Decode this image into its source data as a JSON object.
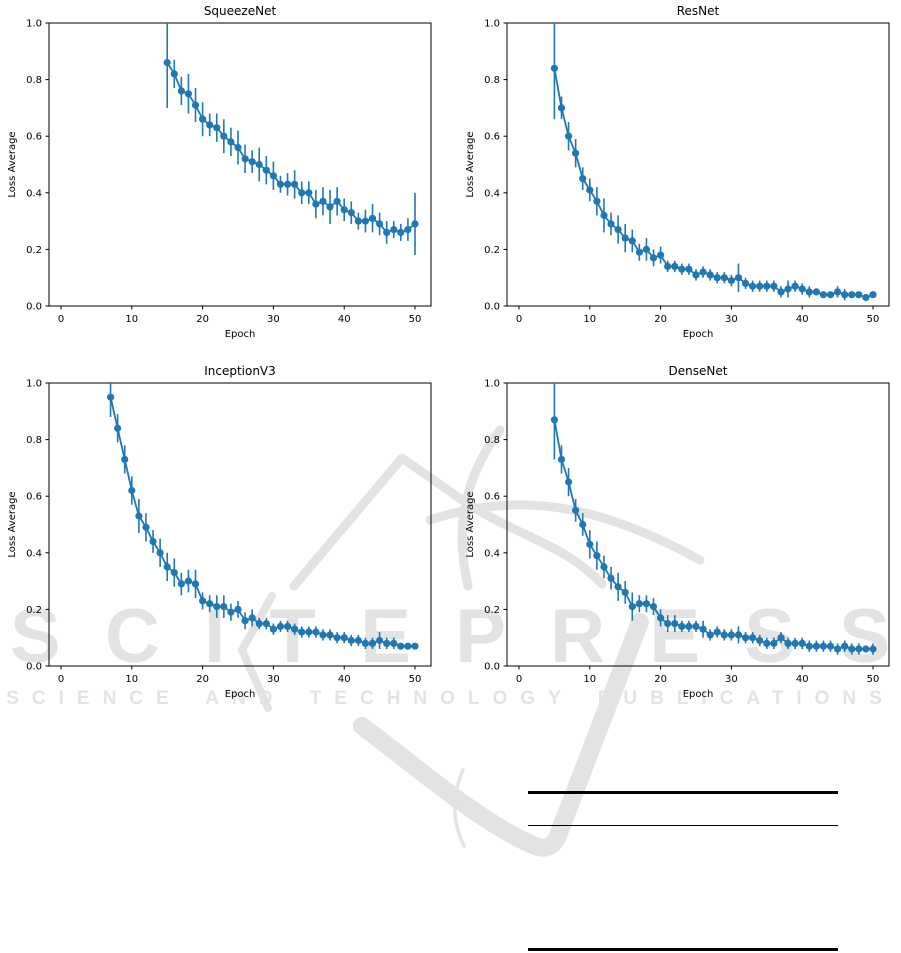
{
  "watermark": {
    "big_text": "SCITEPRESS",
    "sub_text": "SCIENCE AND TECHNOLOGY PUBLICATIONS",
    "color": "#e3e3e3"
  },
  "table_skeleton": {
    "rules_count": 3,
    "visible_text": ""
  },
  "chart_data": [
    {
      "type": "line",
      "title": "SqueezeNet",
      "xlabel": "Epoch",
      "ylabel": "Loss Average",
      "xlim": [
        -2.5,
        52.5
      ],
      "ylim": [
        0.0,
        1.0
      ],
      "xticks": [
        0,
        10,
        20,
        30,
        40,
        50
      ],
      "yticks": [
        0.0,
        0.2,
        0.4,
        0.6,
        0.8,
        1.0
      ],
      "grid": false,
      "legend_position": "none",
      "marker": "circle",
      "color": "#1f77b4",
      "error_bars": true,
      "x": [
        15,
        16,
        17,
        18,
        19,
        20,
        21,
        22,
        23,
        24,
        25,
        26,
        27,
        28,
        29,
        30,
        31,
        32,
        33,
        34,
        35,
        36,
        37,
        38,
        39,
        40,
        41,
        42,
        43,
        44,
        45,
        46,
        47,
        48,
        49,
        50
      ],
      "y": [
        0.86,
        0.82,
        0.76,
        0.75,
        0.71,
        0.66,
        0.64,
        0.63,
        0.6,
        0.58,
        0.56,
        0.52,
        0.51,
        0.5,
        0.48,
        0.46,
        0.43,
        0.43,
        0.43,
        0.4,
        0.4,
        0.36,
        0.37,
        0.35,
        0.37,
        0.34,
        0.33,
        0.3,
        0.3,
        0.31,
        0.29,
        0.26,
        0.27,
        0.26,
        0.27,
        0.29
      ],
      "yerr": [
        0.16,
        0.05,
        0.05,
        0.07,
        0.06,
        0.06,
        0.04,
        0.05,
        0.06,
        0.05,
        0.06,
        0.05,
        0.04,
        0.06,
        0.05,
        0.05,
        0.03,
        0.04,
        0.05,
        0.04,
        0.04,
        0.05,
        0.05,
        0.06,
        0.05,
        0.04,
        0.04,
        0.03,
        0.04,
        0.05,
        0.04,
        0.04,
        0.03,
        0.03,
        0.04,
        0.11
      ]
    },
    {
      "type": "line",
      "title": "ResNet",
      "xlabel": "Epoch",
      "ylabel": "Loss Average",
      "xlim": [
        -2.5,
        52.5
      ],
      "ylim": [
        0.0,
        1.0
      ],
      "xticks": [
        0,
        10,
        20,
        30,
        40,
        50
      ],
      "yticks": [
        0.0,
        0.2,
        0.4,
        0.6,
        0.8,
        1.0
      ],
      "grid": false,
      "legend_position": "none",
      "marker": "circle",
      "color": "#1f77b4",
      "error_bars": true,
      "x": [
        5,
        6,
        7,
        8,
        9,
        10,
        11,
        12,
        13,
        14,
        15,
        16,
        17,
        18,
        19,
        20,
        21,
        22,
        23,
        24,
        25,
        26,
        27,
        28,
        29,
        30,
        31,
        32,
        33,
        34,
        35,
        36,
        37,
        38,
        39,
        40,
        41,
        42,
        43,
        44,
        45,
        46,
        47,
        48,
        49,
        50
      ],
      "y": [
        0.84,
        0.7,
        0.6,
        0.54,
        0.45,
        0.41,
        0.37,
        0.32,
        0.29,
        0.27,
        0.24,
        0.23,
        0.19,
        0.2,
        0.17,
        0.18,
        0.14,
        0.14,
        0.13,
        0.13,
        0.11,
        0.12,
        0.11,
        0.1,
        0.1,
        0.09,
        0.1,
        0.08,
        0.07,
        0.07,
        0.07,
        0.07,
        0.05,
        0.06,
        0.07,
        0.06,
        0.05,
        0.05,
        0.04,
        0.04,
        0.05,
        0.04,
        0.04,
        0.04,
        0.03,
        0.04
      ],
      "yerr": [
        0.18,
        0.04,
        0.05,
        0.05,
        0.04,
        0.04,
        0.05,
        0.06,
        0.04,
        0.05,
        0.05,
        0.04,
        0.03,
        0.04,
        0.03,
        0.03,
        0.02,
        0.02,
        0.02,
        0.02,
        0.02,
        0.02,
        0.02,
        0.02,
        0.02,
        0.02,
        0.05,
        0.02,
        0.02,
        0.02,
        0.02,
        0.02,
        0.02,
        0.03,
        0.02,
        0.02,
        0.02,
        0.01,
        0.01,
        0.01,
        0.02,
        0.02,
        0.01,
        0.01,
        0.01,
        0.01
      ]
    },
    {
      "type": "line",
      "title": "InceptionV3",
      "xlabel": "Epoch",
      "ylabel": "Loss Average",
      "xlim": [
        -2.5,
        52.5
      ],
      "ylim": [
        0.0,
        1.0
      ],
      "xticks": [
        0,
        10,
        20,
        30,
        40,
        50
      ],
      "yticks": [
        0.0,
        0.2,
        0.4,
        0.6,
        0.8,
        1.0
      ],
      "grid": false,
      "legend_position": "none",
      "marker": "circle",
      "color": "#1f77b4",
      "error_bars": true,
      "x": [
        7,
        8,
        9,
        10,
        11,
        12,
        13,
        14,
        15,
        16,
        17,
        18,
        19,
        20,
        21,
        22,
        23,
        24,
        25,
        26,
        27,
        28,
        29,
        30,
        31,
        32,
        33,
        34,
        35,
        36,
        37,
        38,
        39,
        40,
        41,
        42,
        43,
        44,
        45,
        46,
        47,
        48,
        49,
        50
      ],
      "y": [
        0.95,
        0.84,
        0.73,
        0.62,
        0.53,
        0.49,
        0.44,
        0.4,
        0.35,
        0.33,
        0.29,
        0.3,
        0.29,
        0.23,
        0.22,
        0.21,
        0.21,
        0.19,
        0.2,
        0.16,
        0.17,
        0.15,
        0.15,
        0.13,
        0.14,
        0.14,
        0.13,
        0.12,
        0.12,
        0.12,
        0.11,
        0.11,
        0.1,
        0.1,
        0.09,
        0.09,
        0.08,
        0.08,
        0.09,
        0.08,
        0.08,
        0.07,
        0.07,
        0.07
      ],
      "yerr": [
        0.07,
        0.05,
        0.05,
        0.05,
        0.06,
        0.05,
        0.04,
        0.05,
        0.05,
        0.05,
        0.04,
        0.04,
        0.05,
        0.03,
        0.03,
        0.04,
        0.04,
        0.03,
        0.03,
        0.03,
        0.03,
        0.02,
        0.02,
        0.02,
        0.02,
        0.02,
        0.02,
        0.02,
        0.02,
        0.02,
        0.02,
        0.02,
        0.02,
        0.02,
        0.02,
        0.02,
        0.02,
        0.02,
        0.03,
        0.02,
        0.02,
        0.01,
        0.01,
        0.01
      ]
    },
    {
      "type": "line",
      "title": "DenseNet",
      "xlabel": "Epoch",
      "ylabel": "Loss Average",
      "xlim": [
        -2.5,
        52.5
      ],
      "ylim": [
        0.0,
        1.0
      ],
      "xticks": [
        0,
        10,
        20,
        30,
        40,
        50
      ],
      "yticks": [
        0.0,
        0.2,
        0.4,
        0.6,
        0.8,
        1.0
      ],
      "grid": false,
      "legend_position": "none",
      "marker": "circle",
      "color": "#1f77b4",
      "error_bars": true,
      "x": [
        5,
        6,
        7,
        8,
        9,
        10,
        11,
        12,
        13,
        14,
        15,
        16,
        17,
        18,
        19,
        20,
        21,
        22,
        23,
        24,
        25,
        26,
        27,
        28,
        29,
        30,
        31,
        32,
        33,
        34,
        35,
        36,
        37,
        38,
        39,
        40,
        41,
        42,
        43,
        44,
        45,
        46,
        47,
        48,
        49,
        50
      ],
      "y": [
        0.87,
        0.73,
        0.65,
        0.55,
        0.5,
        0.43,
        0.39,
        0.35,
        0.31,
        0.28,
        0.26,
        0.21,
        0.22,
        0.22,
        0.21,
        0.17,
        0.15,
        0.15,
        0.14,
        0.14,
        0.14,
        0.13,
        0.11,
        0.12,
        0.11,
        0.11,
        0.11,
        0.1,
        0.1,
        0.09,
        0.08,
        0.08,
        0.1,
        0.08,
        0.08,
        0.08,
        0.07,
        0.07,
        0.07,
        0.07,
        0.06,
        0.07,
        0.06,
        0.06,
        0.06,
        0.06
      ],
      "yerr": [
        0.14,
        0.05,
        0.05,
        0.04,
        0.04,
        0.05,
        0.05,
        0.04,
        0.04,
        0.05,
        0.04,
        0.05,
        0.03,
        0.03,
        0.03,
        0.03,
        0.03,
        0.03,
        0.02,
        0.02,
        0.02,
        0.03,
        0.02,
        0.02,
        0.02,
        0.02,
        0.03,
        0.02,
        0.02,
        0.02,
        0.02,
        0.02,
        0.02,
        0.02,
        0.02,
        0.02,
        0.02,
        0.02,
        0.02,
        0.02,
        0.02,
        0.02,
        0.02,
        0.02,
        0.01,
        0.02
      ]
    }
  ]
}
